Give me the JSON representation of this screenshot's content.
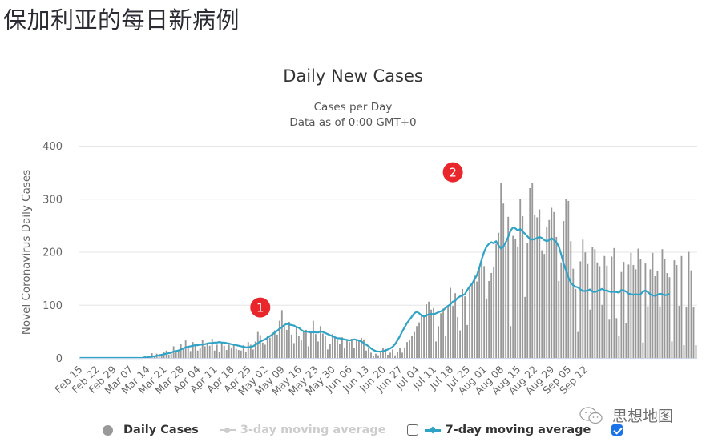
{
  "page": {
    "title": "保加利亚的每日新病例"
  },
  "chart_header": {
    "title": "Daily New Cases",
    "subtitle_line1": "Cases per Day",
    "subtitle_line2": "Data as of 0:00 GMT+0"
  },
  "legend": {
    "daily_cases": "Daily Cases",
    "ma3": "3-day moving average",
    "ma3_checked": false,
    "ma7": "7-day moving average",
    "ma7_checked": true
  },
  "annotations": [
    {
      "label": "1",
      "date_index": 75,
      "y_value": 95
    },
    {
      "label": "2",
      "date_index": 155,
      "y_value": 350
    }
  ],
  "watermark": {
    "text": "思想地图",
    "icon": "wechat-icon"
  },
  "colors": {
    "bar": "#999999",
    "ma7": "#2fa3c6",
    "ma3": "#cccccc",
    "grid": "#e6e6e6",
    "badge": "#e8262b"
  },
  "chart_data": {
    "type": "bar",
    "title": "Daily New Cases",
    "subtitle": "Cases per Day / Data as of 0:00 GMT+0",
    "xlabel": "",
    "ylabel": "Novel Coronavirus Daily Cases",
    "ylim": [
      0,
      400
    ],
    "yticks": [
      0,
      100,
      200,
      300,
      400
    ],
    "grid": true,
    "legend_position": "bottom",
    "start_date": "Feb 15",
    "xtick_labels": [
      "Feb 15",
      "Feb 22",
      "Feb 29",
      "Mar 07",
      "Mar 14",
      "Mar 21",
      "Mar 28",
      "Apr 04",
      "Apr 11",
      "Apr 18",
      "Apr 25",
      "May 02",
      "May 09",
      "May 16",
      "May 23",
      "May 30",
      "Jun 06",
      "Jun 13",
      "Jun 20",
      "Jun 27",
      "Jul 04",
      "Jul 11",
      "Jul 18",
      "Jul 25",
      "Aug 01",
      "Aug 08",
      "Aug 15",
      "Aug 22",
      "Aug 29",
      "Sep 05",
      "Sep 12"
    ],
    "series": [
      {
        "name": "Daily Cases",
        "type": "bar",
        "values": [
          0,
          0,
          0,
          0,
          0,
          0,
          0,
          0,
          0,
          0,
          0,
          0,
          0,
          0,
          0,
          0,
          0,
          0,
          0,
          0,
          0,
          0,
          0,
          0,
          0,
          0,
          0,
          4,
          0,
          2,
          9,
          2,
          8,
          3,
          7,
          11,
          14,
          6,
          8,
          22,
          11,
          15,
          26,
          17,
          33,
          22,
          13,
          30,
          23,
          14,
          18,
          34,
          22,
          29,
          23,
          36,
          14,
          25,
          12,
          30,
          23,
          15,
          25,
          18,
          26,
          17,
          15,
          14,
          24,
          12,
          30,
          25,
          16,
          31,
          49,
          43,
          29,
          25,
          41,
          38,
          48,
          52,
          44,
          70,
          90,
          60,
          53,
          68,
          44,
          28,
          60,
          41,
          33,
          49,
          53,
          22,
          50,
          70,
          45,
          31,
          60,
          46,
          42,
          16,
          27,
          45,
          38,
          34,
          26,
          39,
          18,
          33,
          30,
          36,
          19,
          34,
          33,
          38,
          35,
          14,
          18,
          10,
          3,
          8,
          5,
          13,
          19,
          17,
          6,
          10,
          16,
          5,
          12,
          19,
          10,
          20,
          30,
          34,
          41,
          49,
          60,
          67,
          81,
          80,
          101,
          106,
          91,
          94,
          31,
          60,
          84,
          93,
          42,
          98,
          132,
          98,
          122,
          77,
          52,
          130,
          116,
          62,
          133,
          139,
          155,
          144,
          171,
          178,
          173,
          112,
          145,
          160,
          171,
          215,
          236,
          330,
          291,
          212,
          266,
          60,
          230,
          225,
          210,
          300,
          267,
          115,
          217,
          320,
          330,
          270,
          265,
          280,
          203,
          196,
          246,
          260,
          283,
          275,
          228,
          145,
          180,
          258,
          300,
          296,
          220,
          168,
          130,
          49,
          182,
          223,
          199,
          177,
          91,
          209,
          205,
          180,
          173,
          100,
          192,
          174,
          72,
          191,
          207,
          75,
          41,
          162,
          181,
          66,
          176,
          198,
          175,
          167,
          206,
          187,
          29,
          178,
          97,
          167,
          198,
          154,
          164,
          97,
          205,
          186,
          160,
          152,
          31,
          184,
          175,
          98,
          192,
          24,
          96,
          200,
          165,
          95,
          24
        ]
      },
      {
        "name": "7-day moving average",
        "type": "line",
        "values": [
          0,
          0,
          0,
          0,
          0,
          0,
          0,
          0,
          0,
          0,
          0,
          0,
          0,
          0,
          0,
          0,
          0,
          0,
          0,
          0,
          0,
          0,
          0,
          0,
          0,
          0,
          0,
          1,
          1,
          2,
          3,
          3,
          4,
          5,
          6,
          7,
          8,
          9,
          10,
          12,
          13,
          14,
          16,
          18,
          20,
          21,
          22,
          23,
          24,
          24,
          25,
          25,
          26,
          27,
          28,
          28,
          29,
          29,
          30,
          29,
          29,
          28,
          27,
          26,
          25,
          24,
          23,
          22,
          21,
          20,
          20,
          21,
          22,
          25,
          28,
          31,
          33,
          35,
          38,
          41,
          44,
          48,
          51,
          55,
          58,
          62,
          64,
          63,
          62,
          61,
          58,
          57,
          53,
          50,
          50,
          49,
          48,
          49,
          48,
          48,
          50,
          49,
          47,
          45,
          43,
          41,
          39,
          37,
          37,
          36,
          35,
          34,
          33,
          34,
          35,
          34,
          33,
          31,
          28,
          25,
          22,
          18,
          15,
          13,
          12,
          12,
          13,
          14,
          16,
          18,
          21,
          26,
          33,
          41,
          50,
          58,
          66,
          72,
          78,
          84,
          87,
          84,
          80,
          78,
          80,
          82,
          83,
          82,
          84,
          86,
          88,
          90,
          94,
          98,
          101,
          106,
          108,
          113,
          116,
          118,
          120,
          128,
          135,
          140,
          148,
          156,
          170,
          186,
          200,
          210,
          215,
          218,
          216,
          220,
          212,
          206,
          210,
          218,
          228,
          240,
          246,
          244,
          240,
          243,
          238,
          234,
          229,
          224,
          223,
          224,
          226,
          228,
          226,
          222,
          220,
          222,
          226,
          222,
          218,
          210,
          195,
          178,
          165,
          152,
          142,
          137,
          134,
          133,
          129,
          126,
          126,
          127,
          129,
          125,
          124,
          126,
          128,
          130,
          127,
          127,
          125,
          124,
          125,
          124,
          123,
          128,
          127,
          125,
          121,
          120,
          119,
          120,
          119,
          120,
          125,
          127,
          124,
          120,
          118,
          117,
          119,
          121,
          120,
          118,
          119,
          121
        ]
      },
      {
        "name": "3-day moving average",
        "type": "line",
        "visible": false,
        "values": []
      }
    ]
  }
}
